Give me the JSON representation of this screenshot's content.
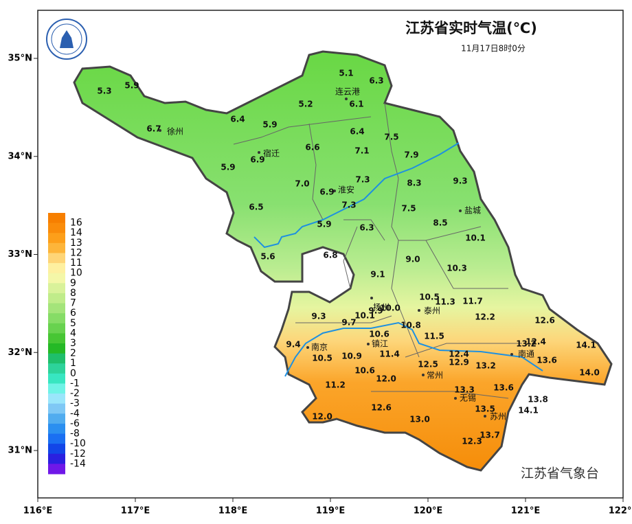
{
  "header": {
    "title": "江苏省实时气温(℃)",
    "time": "11月17日8时0分",
    "agency": "江苏省气象台"
  },
  "axes": {
    "lon_ticks": [
      {
        "value": 116,
        "label": "116°E"
      },
      {
        "value": 117,
        "label": "117°E"
      },
      {
        "value": 118,
        "label": "118°E"
      },
      {
        "value": 119,
        "label": "119°E"
      },
      {
        "value": 120,
        "label": "120°E"
      },
      {
        "value": 121,
        "label": "121°E"
      },
      {
        "value": 122,
        "label": "122°E"
      }
    ],
    "lat_ticks": [
      {
        "value": 31,
        "label": "31°N"
      },
      {
        "value": 32,
        "label": "32°N"
      },
      {
        "value": 33,
        "label": "33°N"
      },
      {
        "value": 34,
        "label": "34°N"
      },
      {
        "value": 35,
        "label": "35°N"
      }
    ]
  },
  "legend": {
    "labels": [
      "16",
      "14",
      "13",
      "12",
      "11",
      "10",
      "9",
      "8",
      "7",
      "6",
      "5",
      "4",
      "3",
      "2",
      "1",
      "0",
      "-1",
      "-2",
      "-3",
      "-4",
      "-6",
      "-8",
      "-10",
      "-12",
      "-14"
    ],
    "colors": [
      "#f77f00",
      "#fa8c0a",
      "#fd9f1a",
      "#fdb53a",
      "#fed577",
      "#fef0a0",
      "#f4f7a8",
      "#d9f29a",
      "#c0ec8a",
      "#a4e47a",
      "#86dc66",
      "#68d24f",
      "#47c634",
      "#25b926",
      "#1fbf6b",
      "#2dd39a",
      "#38e6c1",
      "#6ff3e6",
      "#9ae6fb",
      "#7fc8f5",
      "#51acef",
      "#2b8ff0",
      "#1a6ff2",
      "#1246e8",
      "#2a20e0",
      "#6f18e8"
    ]
  },
  "cities": [
    "连云港",
    "徐州",
    "宿迁",
    "淮安",
    "盐城",
    "扬州",
    "泰州",
    "镇江",
    "南京",
    "南通",
    "常州",
    "无锡",
    "苏州"
  ],
  "stations": [
    "5.1",
    "6.3",
    "6.1",
    "5.3",
    "5.9",
    "5.2",
    "6.4",
    "5.9",
    "6.7",
    "6.4",
    "7.5",
    "6.6",
    "7.1",
    "6.9",
    "7.9",
    "5.9",
    "7.0",
    "6.9",
    "7.3",
    "8.3",
    "9.3",
    "6.5",
    "7.3",
    "7.5",
    "8.5",
    "5.9",
    "6.3",
    "10.1",
    "5.6",
    "6.8",
    "9.0",
    "10.3",
    "9.1",
    "10.5",
    "11.3",
    "11.7",
    "9.9",
    "10.0",
    "9.3",
    "10.1",
    "9.7",
    "12.2",
    "12.6",
    "10.8",
    "10.6",
    "11.5",
    "9.4",
    "13.2",
    "12.4",
    "14.1",
    "12.4",
    "11.4",
    "10.5",
    "10.9",
    "12.9",
    "12.5",
    "13.2",
    "13.6",
    "14.0",
    "10.6",
    "12.0",
    "11.2",
    "13.3",
    "13.6",
    "13.8",
    "13.5",
    "14.1",
    "12.6",
    "13.0",
    "12.0",
    "13.7",
    "12.3"
  ]
}
